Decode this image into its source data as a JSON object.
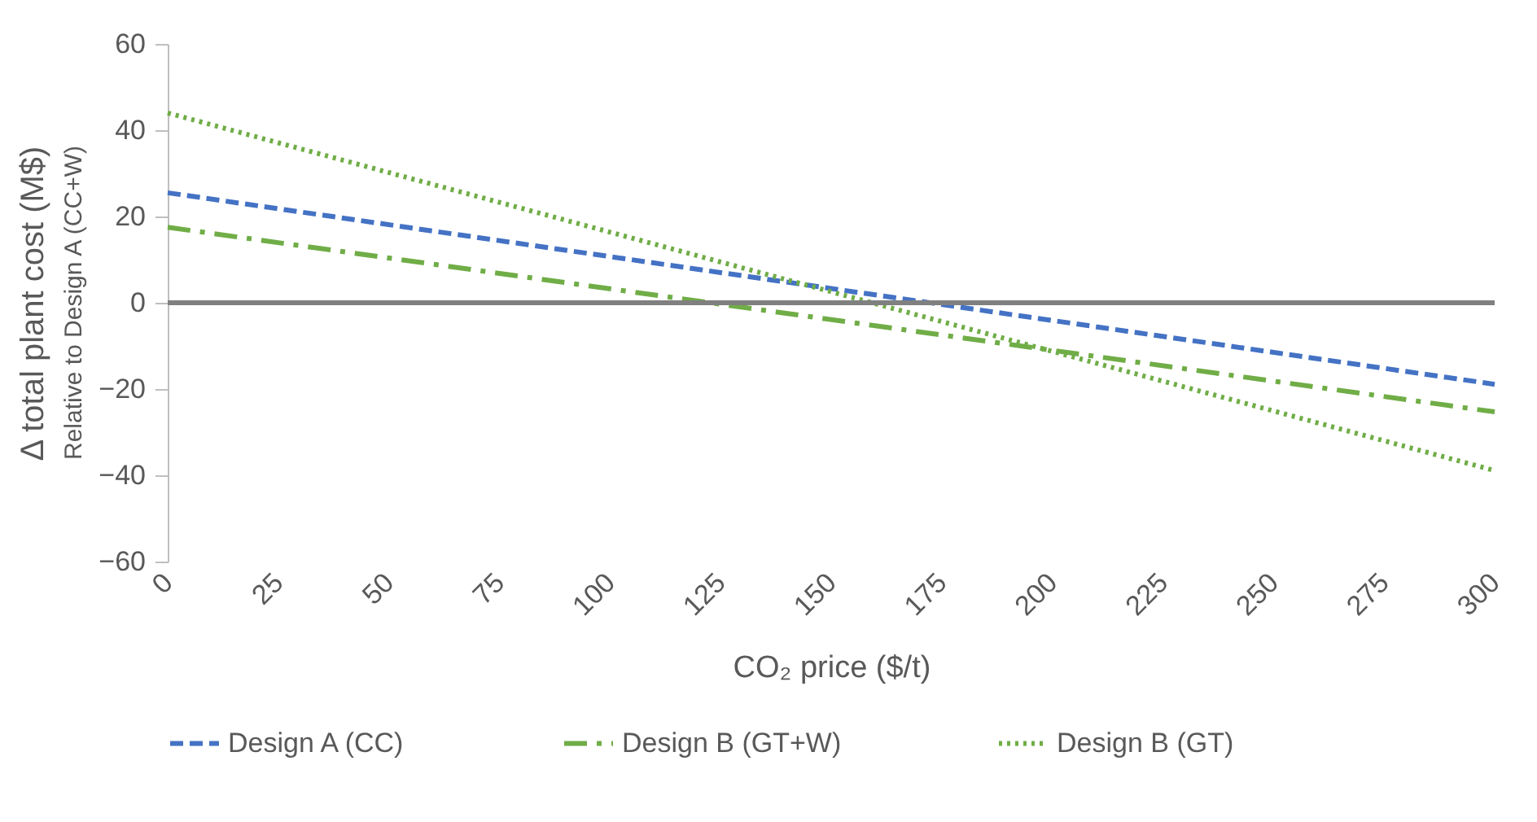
{
  "chart_data": {
    "type": "line",
    "xlabel": "CO₂ price ($/t)",
    "ylabel": "Δ total plant cost (M$)",
    "annotations": [
      "Relative to Design A (CC+W)"
    ],
    "x": [
      0,
      300
    ],
    "series": [
      {
        "name": "Design A (CC)",
        "color": "#4472c4",
        "line_style": "dashed",
        "values": [
          25.5,
          -18.9
        ]
      },
      {
        "name": "Design B (GT+W)",
        "color": "#70ad47",
        "line_style": "dashdot",
        "values": [
          17.5,
          -25.3
        ]
      },
      {
        "name": "Design B (GT)",
        "color": "#70ad47",
        "line_style": "dotted",
        "values": [
          44,
          -38.9
        ]
      }
    ],
    "xlim": [
      0,
      300
    ],
    "xticks": [
      0,
      25,
      50,
      75,
      100,
      125,
      150,
      175,
      200,
      225,
      250,
      275,
      300
    ],
    "ylim": [
      -60,
      60
    ],
    "yticks": [
      -60,
      -40,
      -20,
      0,
      20,
      40,
      60
    ],
    "ref_lines": [
      {
        "axis": "y",
        "value": 0,
        "color": "#808080"
      }
    ],
    "grid": false,
    "legend": "bottom",
    "marker": "none"
  }
}
